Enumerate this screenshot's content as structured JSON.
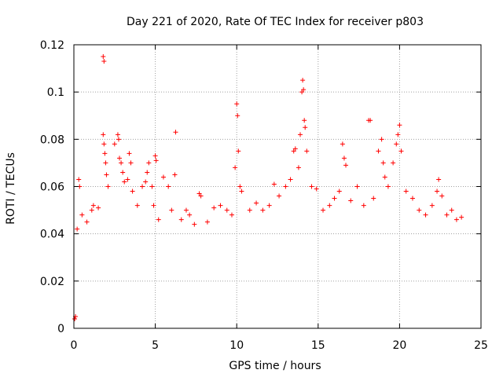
{
  "chart_data": {
    "type": "scatter",
    "title": "Day 221 of 2020, Rate Of TEC Index for receiver p803",
    "xlabel": "GPS time / hours",
    "ylabel": "ROTI / TECUs",
    "xlim": [
      0,
      25
    ],
    "ylim": [
      0,
      0.12
    ],
    "grid": true,
    "x_ticks": [
      0,
      5,
      10,
      15,
      20,
      25
    ],
    "x_tick_labels": [
      "0",
      "5",
      "10",
      "15",
      "20",
      "25"
    ],
    "y_ticks": [
      0,
      0.02,
      0.04,
      0.06,
      0.08,
      0.1,
      0.12
    ],
    "y_tick_labels": [
      "0",
      "0.02",
      "0.04",
      "0.06",
      "0.08",
      "0.1",
      "0.12"
    ],
    "marker": "+",
    "color": "#ff0000",
    "series": [
      {
        "name": "ROTI",
        "points": [
          [
            0.05,
            0.004
          ],
          [
            0.1,
            0.005
          ],
          [
            0.2,
            0.042
          ],
          [
            0.3,
            0.063
          ],
          [
            0.35,
            0.06
          ],
          [
            0.5,
            0.048
          ],
          [
            0.8,
            0.045
          ],
          [
            1.1,
            0.05
          ],
          [
            1.2,
            0.052
          ],
          [
            1.5,
            0.051
          ],
          [
            1.8,
            0.115
          ],
          [
            1.85,
            0.113
          ],
          [
            1.8,
            0.082
          ],
          [
            1.85,
            0.078
          ],
          [
            1.9,
            0.074
          ],
          [
            1.95,
            0.07
          ],
          [
            2.0,
            0.065
          ],
          [
            2.1,
            0.06
          ],
          [
            2.5,
            0.078
          ],
          [
            2.7,
            0.082
          ],
          [
            2.75,
            0.08
          ],
          [
            2.8,
            0.072
          ],
          [
            2.9,
            0.07
          ],
          [
            3.0,
            0.066
          ],
          [
            3.1,
            0.062
          ],
          [
            3.3,
            0.063
          ],
          [
            3.4,
            0.074
          ],
          [
            3.5,
            0.07
          ],
          [
            3.6,
            0.058
          ],
          [
            3.9,
            0.052
          ],
          [
            4.2,
            0.06
          ],
          [
            4.4,
            0.062
          ],
          [
            4.5,
            0.066
          ],
          [
            4.6,
            0.07
          ],
          [
            4.8,
            0.06
          ],
          [
            4.9,
            0.052
          ],
          [
            5.0,
            0.073
          ],
          [
            5.05,
            0.071
          ],
          [
            5.2,
            0.046
          ],
          [
            5.5,
            0.064
          ],
          [
            5.8,
            0.06
          ],
          [
            6.0,
            0.05
          ],
          [
            6.2,
            0.065
          ],
          [
            6.25,
            0.083
          ],
          [
            6.6,
            0.046
          ],
          [
            6.9,
            0.05
          ],
          [
            7.1,
            0.048
          ],
          [
            7.4,
            0.044
          ],
          [
            7.7,
            0.057
          ],
          [
            7.8,
            0.056
          ],
          [
            8.2,
            0.045
          ],
          [
            8.6,
            0.051
          ],
          [
            9.0,
            0.052
          ],
          [
            9.4,
            0.05
          ],
          [
            9.7,
            0.048
          ],
          [
            9.9,
            0.068
          ],
          [
            10.0,
            0.095
          ],
          [
            10.05,
            0.09
          ],
          [
            10.1,
            0.075
          ],
          [
            10.2,
            0.06
          ],
          [
            10.3,
            0.058
          ],
          [
            10.8,
            0.05
          ],
          [
            11.2,
            0.053
          ],
          [
            11.6,
            0.05
          ],
          [
            12.0,
            0.052
          ],
          [
            12.3,
            0.061
          ],
          [
            12.6,
            0.056
          ],
          [
            13.0,
            0.06
          ],
          [
            13.3,
            0.063
          ],
          [
            13.5,
            0.075
          ],
          [
            13.6,
            0.076
          ],
          [
            13.8,
            0.068
          ],
          [
            13.9,
            0.082
          ],
          [
            14.0,
            0.1
          ],
          [
            14.05,
            0.105
          ],
          [
            14.1,
            0.101
          ],
          [
            14.15,
            0.088
          ],
          [
            14.2,
            0.085
          ],
          [
            14.3,
            0.075
          ],
          [
            14.6,
            0.06
          ],
          [
            14.9,
            0.059
          ],
          [
            15.3,
            0.05
          ],
          [
            15.7,
            0.052
          ],
          [
            16.0,
            0.055
          ],
          [
            16.3,
            0.058
          ],
          [
            16.5,
            0.078
          ],
          [
            16.6,
            0.072
          ],
          [
            16.7,
            0.069
          ],
          [
            17.0,
            0.054
          ],
          [
            17.4,
            0.06
          ],
          [
            17.8,
            0.052
          ],
          [
            18.1,
            0.088
          ],
          [
            18.2,
            0.088
          ],
          [
            18.4,
            0.055
          ],
          [
            18.7,
            0.075
          ],
          [
            18.9,
            0.08
          ],
          [
            19.0,
            0.07
          ],
          [
            19.1,
            0.064
          ],
          [
            19.3,
            0.06
          ],
          [
            19.6,
            0.07
          ],
          [
            19.8,
            0.078
          ],
          [
            19.9,
            0.082
          ],
          [
            20.0,
            0.086
          ],
          [
            20.1,
            0.075
          ],
          [
            20.4,
            0.058
          ],
          [
            20.8,
            0.055
          ],
          [
            21.2,
            0.05
          ],
          [
            21.6,
            0.048
          ],
          [
            22.0,
            0.052
          ],
          [
            22.3,
            0.058
          ],
          [
            22.4,
            0.063
          ],
          [
            22.6,
            0.056
          ],
          [
            22.9,
            0.048
          ],
          [
            23.2,
            0.05
          ],
          [
            23.5,
            0.046
          ],
          [
            23.8,
            0.047
          ]
        ]
      }
    ]
  }
}
